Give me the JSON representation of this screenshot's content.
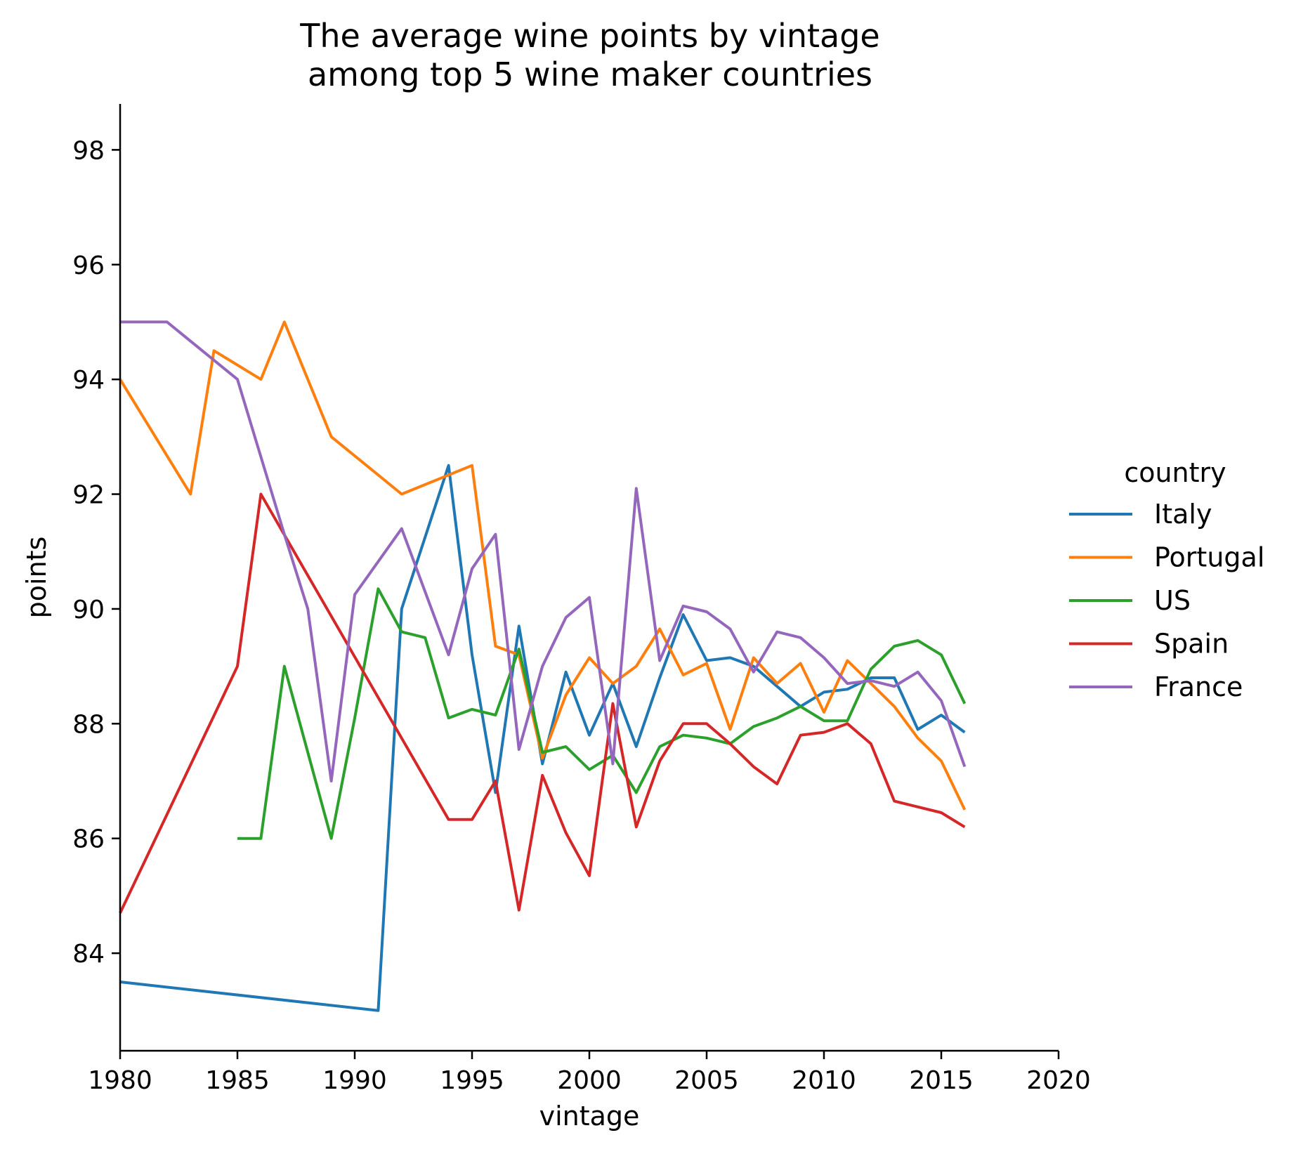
{
  "chart_data": {
    "type": "line",
    "title_line1": "The average wine points by vintage",
    "title_line2": "among top 5 wine maker countries",
    "xlabel": "vintage",
    "ylabel": "points",
    "xlim": [
      1980,
      2020
    ],
    "ylim": [
      82.3,
      98.8
    ],
    "xticks": [
      1980,
      1985,
      1990,
      1995,
      2000,
      2005,
      2010,
      2015,
      2020
    ],
    "yticks": [
      84,
      86,
      88,
      90,
      92,
      94,
      96,
      98
    ],
    "grid": false,
    "legend": {
      "title": "country",
      "placement": "right"
    },
    "series": [
      {
        "name": "Italy",
        "color": "#1f77b4",
        "x": [
          1980,
          1991,
          1992,
          1994,
          1995,
          1996,
          1997,
          1998,
          1999,
          2000,
          2001,
          2002,
          2003,
          2004,
          2005,
          2006,
          2007,
          2008,
          2009,
          2010,
          2011,
          2012,
          2013,
          2014,
          2015,
          2016
        ],
        "y": [
          83.5,
          83.0,
          90.0,
          92.5,
          89.2,
          86.8,
          89.7,
          87.3,
          88.9,
          87.8,
          88.7,
          87.6,
          88.8,
          89.9,
          89.1,
          89.15,
          89.0,
          88.65,
          88.3,
          88.55,
          88.6,
          88.8,
          88.8,
          87.9,
          88.15,
          87.85
        ]
      },
      {
        "name": "Portugal",
        "color": "#ff7f0e",
        "x": [
          1980,
          1983,
          1984,
          1986,
          1987,
          1989,
          1992,
          1995,
          1996,
          1997,
          1998,
          1999,
          2000,
          2001,
          2002,
          2003,
          2004,
          2005,
          2006,
          2007,
          2008,
          2009,
          2010,
          2011,
          2012,
          2013,
          2014,
          2015,
          2016
        ],
        "y": [
          94.0,
          92.0,
          94.5,
          94.0,
          95.0,
          93.0,
          92.0,
          92.5,
          89.35,
          89.2,
          87.4,
          88.5,
          89.15,
          88.7,
          89.0,
          89.65,
          88.85,
          89.05,
          87.9,
          89.15,
          88.7,
          89.05,
          88.2,
          89.1,
          88.7,
          88.3,
          87.75,
          87.35,
          86.5
        ]
      },
      {
        "name": "US",
        "color": "#2ca02c",
        "x": [
          1985,
          1986,
          1987,
          1988,
          1989,
          1990,
          1991,
          1992,
          1993,
          1994,
          1995,
          1996,
          1997,
          1998,
          1999,
          2000,
          2001,
          2002,
          2003,
          2004,
          2005,
          2006,
          2007,
          2008,
          2009,
          2010,
          2011,
          2012,
          2013,
          2014,
          2015,
          2016
        ],
        "y": [
          86.0,
          86.0,
          89.0,
          87.5,
          86.0,
          88.1,
          90.35,
          89.6,
          89.5,
          88.1,
          88.25,
          88.15,
          89.3,
          87.5,
          87.6,
          87.2,
          87.45,
          86.8,
          87.6,
          87.8,
          87.75,
          87.65,
          87.95,
          88.1,
          88.3,
          88.05,
          88.05,
          88.95,
          89.35,
          89.45,
          89.2,
          88.35
        ]
      },
      {
        "name": "Spain",
        "color": "#d62728",
        "x": [
          1980,
          1985,
          1986,
          1994,
          1995,
          1996,
          1997,
          1998,
          1999,
          2000,
          2001,
          2002,
          2003,
          2004,
          2005,
          2006,
          2007,
          2008,
          2009,
          2010,
          2011,
          2012,
          2013,
          2014,
          2015,
          2016
        ],
        "y": [
          84.7,
          89.0,
          92.0,
          86.33,
          86.33,
          87.0,
          84.75,
          87.1,
          86.1,
          85.35,
          88.35,
          86.2,
          87.35,
          88.0,
          88.0,
          87.65,
          87.25,
          86.95,
          87.8,
          87.85,
          88.0,
          87.65,
          86.65,
          86.55,
          86.45,
          86.2
        ]
      },
      {
        "name": "France",
        "color": "#9467bd",
        "x": [
          1980,
          1982,
          1985,
          1987,
          1988,
          1989,
          1990,
          1992,
          1994,
          1995,
          1996,
          1997,
          1998,
          1999,
          2000,
          2001,
          2002,
          2003,
          2004,
          2005,
          2006,
          2007,
          2008,
          2009,
          2010,
          2011,
          2012,
          2013,
          2014,
          2015,
          2016
        ],
        "y": [
          95.0,
          95.0,
          94.0,
          91.3,
          90.0,
          87.0,
          90.25,
          91.4,
          89.2,
          90.7,
          91.3,
          87.55,
          89.0,
          89.85,
          90.2,
          87.3,
          92.1,
          89.1,
          90.05,
          89.95,
          89.65,
          88.9,
          89.6,
          89.5,
          89.15,
          88.7,
          88.75,
          88.65,
          88.9,
          88.4,
          87.25
        ]
      }
    ]
  }
}
